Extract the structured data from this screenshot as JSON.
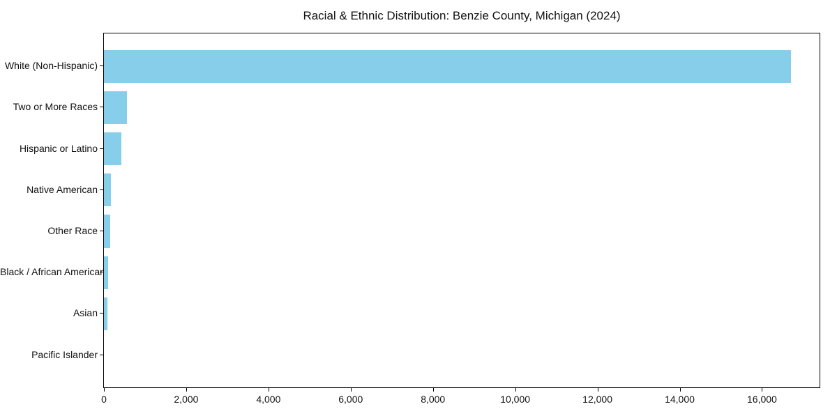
{
  "chart_data": {
    "type": "bar",
    "orientation": "horizontal",
    "title": "Racial & Ethnic Distribution: Benzie County, Michigan (2024)",
    "categories": [
      "White (Non-Hispanic)",
      "Two or More Races",
      "Hispanic or Latino",
      "Native American",
      "Other Race",
      "Black / African American",
      "Asian",
      "Pacific Islander"
    ],
    "values": [
      16700,
      560,
      420,
      170,
      160,
      110,
      90,
      0
    ],
    "bar_color": "#87CEEB",
    "xlim": [
      0,
      17400
    ],
    "x_ticks": [
      0,
      2000,
      4000,
      6000,
      8000,
      10000,
      12000,
      14000,
      16000
    ],
    "x_tick_labels": [
      "0",
      "2,000",
      "4,000",
      "6,000",
      "8,000",
      "10,000",
      "12,000",
      "14,000",
      "16,000"
    ],
    "xlabel": "",
    "ylabel": "",
    "grid": false,
    "legend": null,
    "frame_color": "#000000"
  }
}
